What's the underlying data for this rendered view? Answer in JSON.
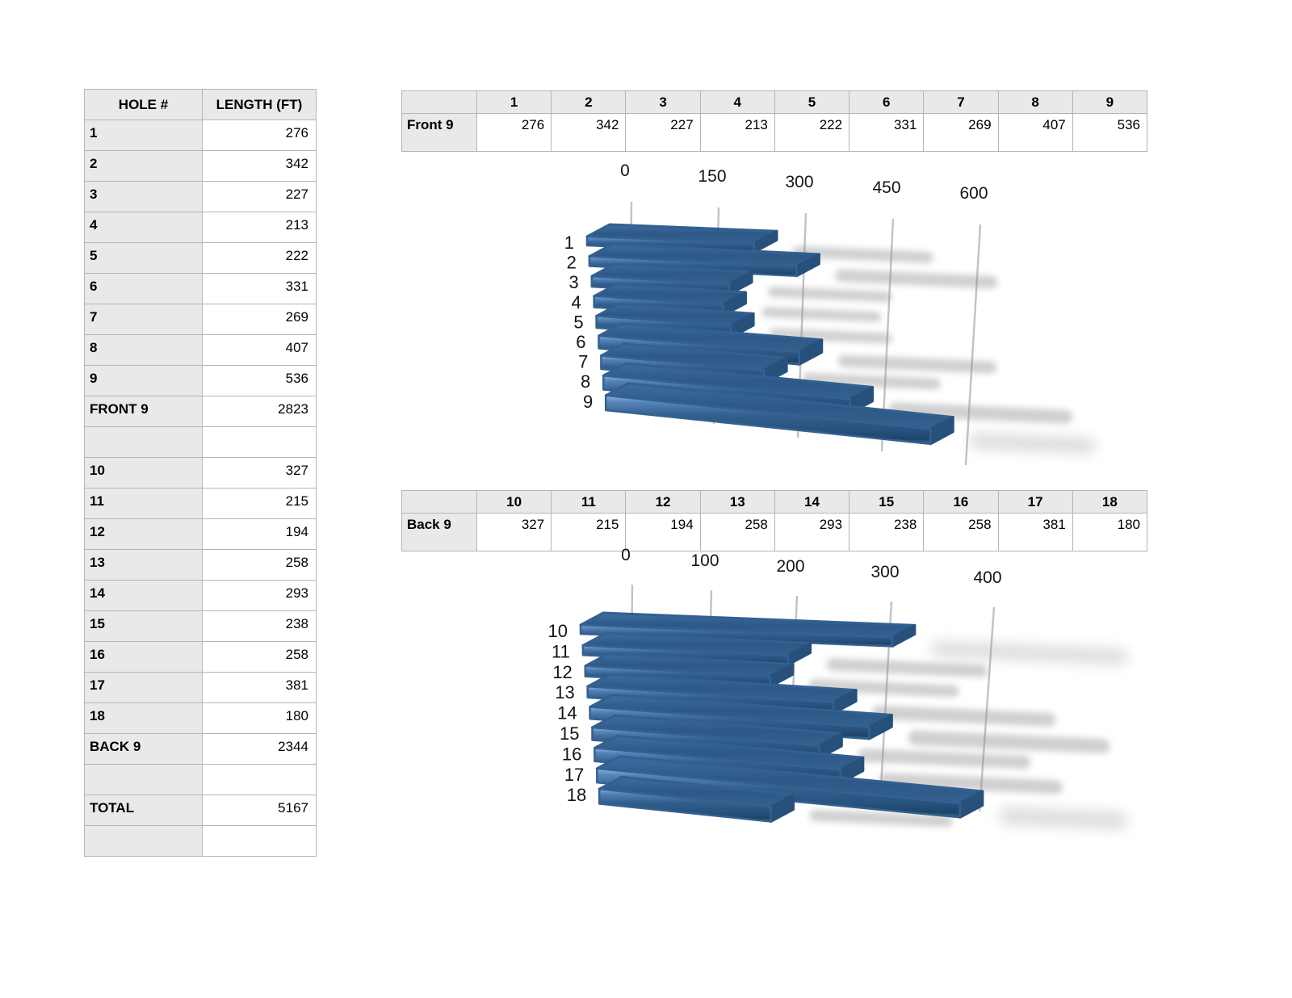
{
  "left_table": {
    "col_headers": [
      "HOLE #",
      "LENGTH (FT)"
    ],
    "rows": [
      {
        "label": "1",
        "value": "276"
      },
      {
        "label": "2",
        "value": "342"
      },
      {
        "label": "3",
        "value": "227"
      },
      {
        "label": "4",
        "value": "213"
      },
      {
        "label": "5",
        "value": "222"
      },
      {
        "label": "6",
        "value": "331"
      },
      {
        "label": "7",
        "value": "269"
      },
      {
        "label": "8",
        "value": "407"
      },
      {
        "label": "9",
        "value": "536"
      },
      {
        "label": "FRONT 9",
        "value": "2823"
      },
      {
        "label": "",
        "value": ""
      },
      {
        "label": "10",
        "value": "327"
      },
      {
        "label": "11",
        "value": "215"
      },
      {
        "label": "12",
        "value": "194"
      },
      {
        "label": "13",
        "value": "258"
      },
      {
        "label": "14",
        "value": "293"
      },
      {
        "label": "15",
        "value": "238"
      },
      {
        "label": "16",
        "value": "258"
      },
      {
        "label": "17",
        "value": "381"
      },
      {
        "label": "18",
        "value": "180"
      },
      {
        "label": "BACK 9",
        "value": "2344"
      },
      {
        "label": "",
        "value": ""
      },
      {
        "label": "TOTAL",
        "value": "5167"
      },
      {
        "label": "",
        "value": ""
      }
    ]
  },
  "front9_table": {
    "row_label": "Front 9",
    "col_headers": [
      "1",
      "2",
      "3",
      "4",
      "5",
      "6",
      "7",
      "8",
      "9"
    ],
    "values": [
      "276",
      "342",
      "227",
      "213",
      "222",
      "331",
      "269",
      "407",
      "536"
    ]
  },
  "back9_table": {
    "row_label": "Back 9",
    "col_headers": [
      "10",
      "11",
      "12",
      "13",
      "14",
      "15",
      "16",
      "17",
      "18"
    ],
    "values": [
      "327",
      "215",
      "194",
      "258",
      "293",
      "238",
      "258",
      "381",
      "180"
    ]
  },
  "chart_data": [
    {
      "id": "front9",
      "type": "bar",
      "orientation": "horizontal",
      "style": "3d",
      "series_label": "Front 9",
      "categories": [
        "1",
        "2",
        "3",
        "4",
        "5",
        "6",
        "7",
        "8",
        "9"
      ],
      "values": [
        276,
        342,
        227,
        213,
        222,
        331,
        269,
        407,
        536
      ],
      "xticks": [
        0,
        150,
        300,
        450,
        600
      ],
      "xlim": [
        0,
        600
      ],
      "grid": true,
      "legend": false,
      "bar_color": "#2e5a8a"
    },
    {
      "id": "back9",
      "type": "bar",
      "orientation": "horizontal",
      "style": "3d",
      "series_label": "Back 9",
      "categories": [
        "10",
        "11",
        "12",
        "13",
        "14",
        "15",
        "16",
        "17",
        "18"
      ],
      "values": [
        327,
        215,
        194,
        258,
        293,
        238,
        258,
        381,
        180
      ],
      "xticks": [
        0,
        100,
        200,
        300,
        400
      ],
      "xlim": [
        0,
        400
      ],
      "grid": true,
      "legend": false,
      "bar_color": "#2e5a8a"
    }
  ],
  "colors": {
    "bar_face": "#2e5a8a",
    "bar_highlight": "#8fb4e2",
    "bar_dark": "#1f4469",
    "bar_top": "#2d5887",
    "grid_line": "#c2c2c2",
    "shadow": "#8f8f8f",
    "table_header_bg": "#e9e9e9",
    "table_border": "#b5b5b5"
  }
}
